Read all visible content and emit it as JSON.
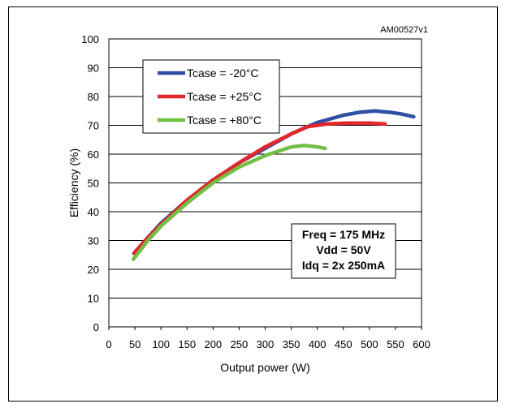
{
  "chart_data": {
    "type": "line",
    "reference": "AM00527v1",
    "xlabel": "Output power (W)",
    "ylabel": "Efficiency (%)",
    "xlim": [
      0,
      600
    ],
    "ylim": [
      0,
      100
    ],
    "xticks": [
      0,
      50,
      100,
      150,
      200,
      250,
      300,
      350,
      400,
      450,
      500,
      550,
      600
    ],
    "yticks": [
      0,
      10,
      20,
      30,
      40,
      50,
      60,
      70,
      80,
      90,
      100
    ],
    "grid": "horizontal",
    "legend_position": "top-left",
    "series": [
      {
        "name": "Tcase = -20°C",
        "color": "#2e4fa3",
        "x": [
          50,
          75,
          100,
          150,
          200,
          250,
          300,
          350,
          400,
          450,
          480,
          510,
          540,
          560,
          585
        ],
        "y": [
          26,
          31,
          36,
          44,
          51,
          57,
          62,
          67,
          71,
          73.5,
          74.5,
          75,
          74.5,
          74,
          73
        ]
      },
      {
        "name": "Tcase = +25°C",
        "color": "#e2262b",
        "x": [
          48,
          75,
          100,
          150,
          200,
          250,
          300,
          350,
          380,
          420,
          460,
          500,
          530
        ],
        "y": [
          25.5,
          31,
          35.5,
          44,
          51,
          57,
          62.5,
          67,
          69.5,
          70.5,
          70.8,
          70.8,
          70.5
        ]
      },
      {
        "name": "Tcase = +80°C",
        "color": "#73be44",
        "x": [
          47,
          75,
          100,
          150,
          200,
          250,
          300,
          350,
          375,
          400,
          415
        ],
        "y": [
          23.5,
          30,
          35,
          43,
          50,
          55.5,
          59.5,
          62.5,
          63,
          62.5,
          62
        ]
      }
    ],
    "annotations": [
      "Freq = 175 MHz",
      "Vdd = 50V",
      "Idq = 2x 250mA"
    ]
  }
}
